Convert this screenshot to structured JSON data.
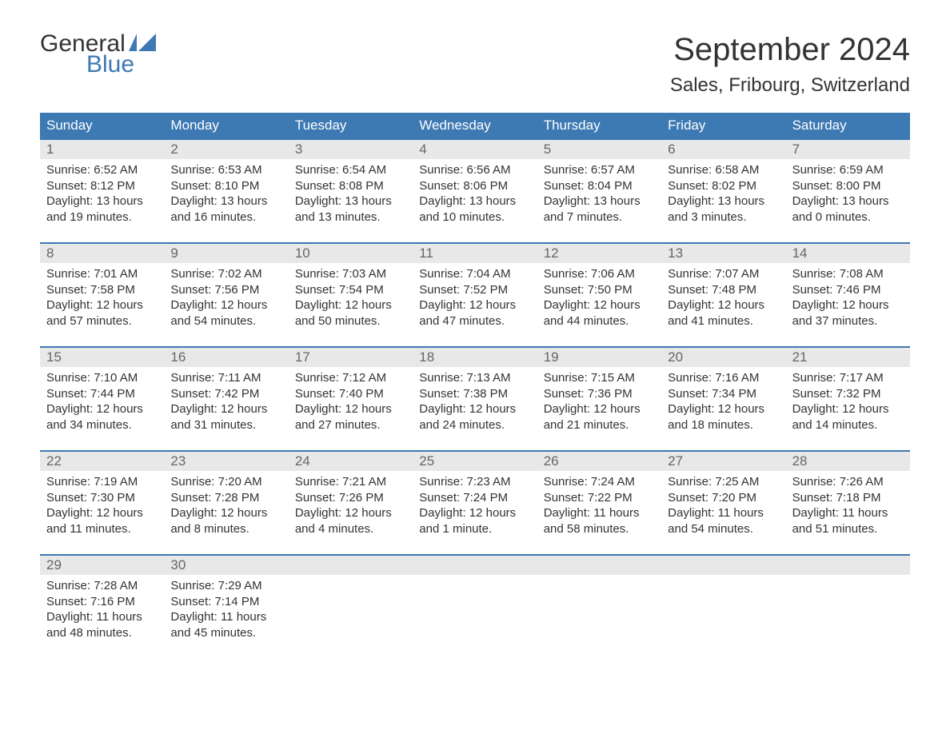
{
  "logo": {
    "line1": "General",
    "line2": "Blue"
  },
  "title": "September 2024",
  "location": "Sales, Fribourg, Switzerland",
  "colors": {
    "header_bg": "#3d79b3",
    "header_text": "#ffffff",
    "daynum_bg": "#e8e8e8",
    "daynum_text": "#666666",
    "body_text": "#333333",
    "logo_blue": "#3d79b3",
    "page_bg": "#ffffff",
    "row_border": "#3d79b3"
  },
  "fonts": {
    "title_size_pt": 30,
    "location_size_pt": 18,
    "weekday_size_pt": 13,
    "daynum_size_pt": 13,
    "cell_size_pt": 11
  },
  "labels": {
    "sunrise": "Sunrise: ",
    "sunset": "Sunset: ",
    "daylight": "Daylight: "
  },
  "weekdays": [
    "Sunday",
    "Monday",
    "Tuesday",
    "Wednesday",
    "Thursday",
    "Friday",
    "Saturday"
  ],
  "weeks": [
    [
      {
        "n": "1",
        "sunrise": "6:52 AM",
        "sunset": "8:12 PM",
        "daylight": "13 hours and 19 minutes."
      },
      {
        "n": "2",
        "sunrise": "6:53 AM",
        "sunset": "8:10 PM",
        "daylight": "13 hours and 16 minutes."
      },
      {
        "n": "3",
        "sunrise": "6:54 AM",
        "sunset": "8:08 PM",
        "daylight": "13 hours and 13 minutes."
      },
      {
        "n": "4",
        "sunrise": "6:56 AM",
        "sunset": "8:06 PM",
        "daylight": "13 hours and 10 minutes."
      },
      {
        "n": "5",
        "sunrise": "6:57 AM",
        "sunset": "8:04 PM",
        "daylight": "13 hours and 7 minutes."
      },
      {
        "n": "6",
        "sunrise": "6:58 AM",
        "sunset": "8:02 PM",
        "daylight": "13 hours and 3 minutes."
      },
      {
        "n": "7",
        "sunrise": "6:59 AM",
        "sunset": "8:00 PM",
        "daylight": "13 hours and 0 minutes."
      }
    ],
    [
      {
        "n": "8",
        "sunrise": "7:01 AM",
        "sunset": "7:58 PM",
        "daylight": "12 hours and 57 minutes."
      },
      {
        "n": "9",
        "sunrise": "7:02 AM",
        "sunset": "7:56 PM",
        "daylight": "12 hours and 54 minutes."
      },
      {
        "n": "10",
        "sunrise": "7:03 AM",
        "sunset": "7:54 PM",
        "daylight": "12 hours and 50 minutes."
      },
      {
        "n": "11",
        "sunrise": "7:04 AM",
        "sunset": "7:52 PM",
        "daylight": "12 hours and 47 minutes."
      },
      {
        "n": "12",
        "sunrise": "7:06 AM",
        "sunset": "7:50 PM",
        "daylight": "12 hours and 44 minutes."
      },
      {
        "n": "13",
        "sunrise": "7:07 AM",
        "sunset": "7:48 PM",
        "daylight": "12 hours and 41 minutes."
      },
      {
        "n": "14",
        "sunrise": "7:08 AM",
        "sunset": "7:46 PM",
        "daylight": "12 hours and 37 minutes."
      }
    ],
    [
      {
        "n": "15",
        "sunrise": "7:10 AM",
        "sunset": "7:44 PM",
        "daylight": "12 hours and 34 minutes."
      },
      {
        "n": "16",
        "sunrise": "7:11 AM",
        "sunset": "7:42 PM",
        "daylight": "12 hours and 31 minutes."
      },
      {
        "n": "17",
        "sunrise": "7:12 AM",
        "sunset": "7:40 PM",
        "daylight": "12 hours and 27 minutes."
      },
      {
        "n": "18",
        "sunrise": "7:13 AM",
        "sunset": "7:38 PM",
        "daylight": "12 hours and 24 minutes."
      },
      {
        "n": "19",
        "sunrise": "7:15 AM",
        "sunset": "7:36 PM",
        "daylight": "12 hours and 21 minutes."
      },
      {
        "n": "20",
        "sunrise": "7:16 AM",
        "sunset": "7:34 PM",
        "daylight": "12 hours and 18 minutes."
      },
      {
        "n": "21",
        "sunrise": "7:17 AM",
        "sunset": "7:32 PM",
        "daylight": "12 hours and 14 minutes."
      }
    ],
    [
      {
        "n": "22",
        "sunrise": "7:19 AM",
        "sunset": "7:30 PM",
        "daylight": "12 hours and 11 minutes."
      },
      {
        "n": "23",
        "sunrise": "7:20 AM",
        "sunset": "7:28 PM",
        "daylight": "12 hours and 8 minutes."
      },
      {
        "n": "24",
        "sunrise": "7:21 AM",
        "sunset": "7:26 PM",
        "daylight": "12 hours and 4 minutes."
      },
      {
        "n": "25",
        "sunrise": "7:23 AM",
        "sunset": "7:24 PM",
        "daylight": "12 hours and 1 minute."
      },
      {
        "n": "26",
        "sunrise": "7:24 AM",
        "sunset": "7:22 PM",
        "daylight": "11 hours and 58 minutes."
      },
      {
        "n": "27",
        "sunrise": "7:25 AM",
        "sunset": "7:20 PM",
        "daylight": "11 hours and 54 minutes."
      },
      {
        "n": "28",
        "sunrise": "7:26 AM",
        "sunset": "7:18 PM",
        "daylight": "11 hours and 51 minutes."
      }
    ],
    [
      {
        "n": "29",
        "sunrise": "7:28 AM",
        "sunset": "7:16 PM",
        "daylight": "11 hours and 48 minutes."
      },
      {
        "n": "30",
        "sunrise": "7:29 AM",
        "sunset": "7:14 PM",
        "daylight": "11 hours and 45 minutes."
      },
      null,
      null,
      null,
      null,
      null
    ]
  ]
}
